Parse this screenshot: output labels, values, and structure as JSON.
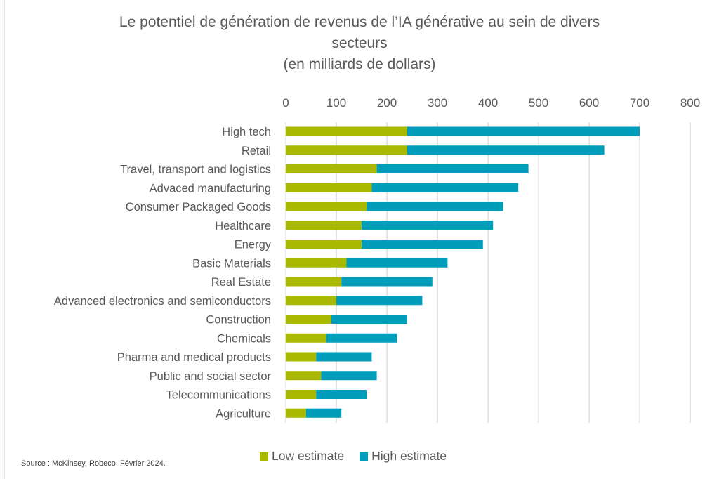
{
  "chart_data": {
    "type": "bar",
    "orientation": "horizontal",
    "stacked": true,
    "title": "Le potentiel de génération de revenus de l’IA générative au sein de divers secteurs",
    "title_lines": [
      "Le potentiel de génération de revenus de l’IA générative au sein de divers",
      "secteurs",
      "(en milliards de dollars)"
    ],
    "subtitle": "(en milliards de dollars)",
    "xlabel": "",
    "ylabel": "",
    "xlim": [
      0,
      800
    ],
    "x_ticks": [
      0,
      100,
      200,
      300,
      400,
      500,
      600,
      700,
      800
    ],
    "x_tick_labels": [
      "0",
      "100",
      "200",
      "300",
      "400",
      "500",
      "600",
      "700",
      "800"
    ],
    "x_axis_position": "top",
    "grid": true,
    "legend_position": "bottom",
    "categories": [
      "High tech",
      "Retail",
      "Travel, transport and logistics",
      "Advaced manufacturing",
      "Consumer Packaged Goods",
      "Healthcare",
      "Energy",
      "Basic Materials",
      "Real Estate",
      "Advanced electronics and semiconductors",
      "Construction",
      "Chemicals",
      "Pharma and medical products",
      "Public and social sector",
      "Telecommunications",
      "Agriculture"
    ],
    "series": [
      {
        "name": "Low estimate",
        "color": "#a9b800",
        "values": [
          240,
          240,
          180,
          170,
          160,
          150,
          150,
          120,
          110,
          100,
          90,
          80,
          60,
          70,
          60,
          40
        ]
      },
      {
        "name": "High estimate",
        "color": "#009ebb",
        "values": [
          700,
          630,
          480,
          460,
          430,
          410,
          390,
          320,
          290,
          270,
          240,
          220,
          170,
          180,
          160,
          110
        ]
      }
    ],
    "stack_note": "High estimate segment extends from the low estimate to the high estimate value (total bar length = high estimate)",
    "source": "Source : McKinsey, Robeco. Février 2024."
  }
}
